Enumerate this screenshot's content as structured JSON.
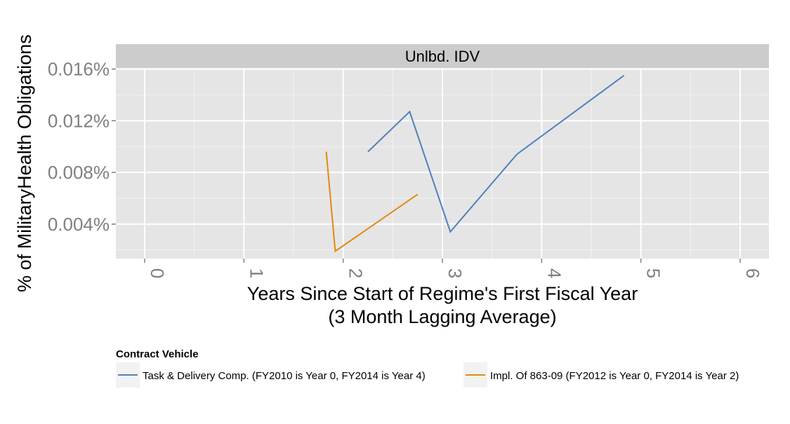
{
  "chart_data": {
    "type": "line",
    "facet_title": "Unlbd. IDV",
    "xlabel_line1": "Years Since Start of Regime's First Fiscal Year",
    "xlabel_line2": "(3 Month Lagging Average)",
    "ylabel": "% of MilitaryHealth Obligations",
    "xlim": [
      -0.3,
      6.3
    ],
    "ylim": [
      0.0,
      1.65e-05
    ],
    "x_ticks": [
      0,
      1,
      2,
      3,
      4,
      5,
      6
    ],
    "x_tick_labels": [
      "0",
      "1",
      "2",
      "3",
      "4",
      "5",
      "6"
    ],
    "y_ticks": [
      0.004,
      0.008,
      0.012,
      0.016
    ],
    "y_tick_labels": [
      "0.004%",
      "0.008%",
      "0.012%",
      "0.016%"
    ],
    "grid": true,
    "legend": {
      "title": "Contract Vehicle",
      "position": "bottom"
    },
    "series": [
      {
        "name": "Task & Delivery Comp. (FY2010 is Year 0, FY2014 is Year 4)",
        "color": "#4f81bd",
        "x": [
          2.25,
          2.67,
          3.08,
          3.75,
          4.83
        ],
        "y": [
          0.0096,
          0.0127,
          0.0034,
          0.0094,
          0.0155
        ]
      },
      {
        "name": "Impl. Of 863-09 (FY2012 is Year 0, FY2014 is Year 2)",
        "color": "#e3890e",
        "x": [
          1.83,
          1.92,
          2.75
        ],
        "y": [
          0.0096,
          0.0019,
          0.0063
        ]
      }
    ]
  },
  "colors": {
    "panel_bg": "#e5e5e5",
    "strip_bg": "#cccccc",
    "grid_major": "#ffffff",
    "grid_minor": "#f2f2f2",
    "tick_text": "#7f7f7f",
    "legend_key_bg": "#f2f2f2"
  }
}
